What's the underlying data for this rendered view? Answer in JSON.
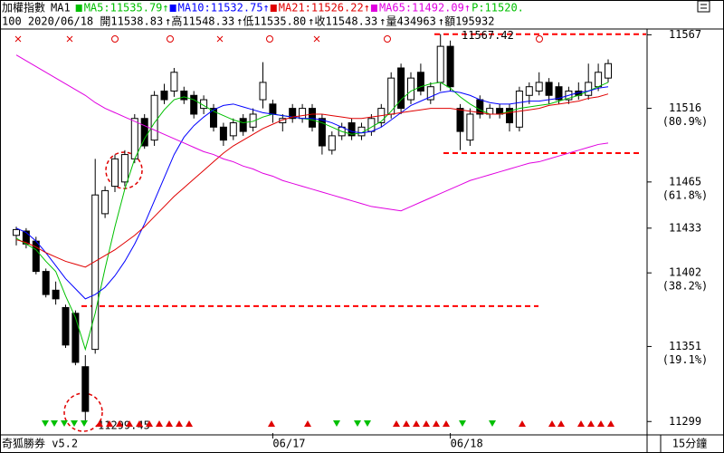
{
  "chart_data": {
    "type": "candlestick",
    "title": "加權指數",
    "subtitle": "MA1",
    "price_label": "P:11520.",
    "info": [
      "100 2020/06/18 開11538.83",
      "↑高11548.33",
      "↑低11535.80",
      "↑收11548.33",
      "↑量434963",
      "↑額195932"
    ],
    "brand": "奇狐勝券 v5.2",
    "interval": "15分鐘",
    "categories": [
      null,
      null,
      null,
      null,
      null,
      null,
      null,
      null,
      null,
      null,
      null,
      null,
      null,
      null,
      null,
      null,
      null,
      null,
      null,
      null,
      null,
      null,
      null,
      null,
      null,
      null,
      "06/17",
      null,
      null,
      null,
      null,
      null,
      null,
      null,
      null,
      null,
      null,
      null,
      null,
      null,
      null,
      null,
      null,
      null,
      "06/18",
      null,
      null,
      null,
      null,
      null,
      null,
      null,
      null,
      null,
      null,
      null,
      null,
      null,
      null,
      null,
      null
    ],
    "candles": [
      [
        11428,
        11434,
        11421,
        11432
      ],
      [
        11431,
        11433,
        11419,
        11422
      ],
      [
        11424,
        11427,
        11401,
        11403
      ],
      [
        11403,
        11405,
        11385,
        11387
      ],
      [
        11390,
        11396,
        11380,
        11384
      ],
      [
        11378,
        11380,
        11350,
        11352
      ],
      [
        11374,
        11376,
        11338,
        11340
      ],
      [
        11337,
        11345,
        11299.45,
        11306
      ],
      [
        11349,
        11481,
        11346,
        11456
      ],
      [
        11443,
        11462,
        11440,
        11459
      ],
      [
        11462,
        11484,
        11458,
        11481
      ],
      [
        11465,
        11487,
        11462,
        11484
      ],
      [
        11481,
        11512,
        11478,
        11509
      ],
      [
        11509,
        11512,
        11488,
        11490
      ],
      [
        11494,
        11528,
        11490,
        11525
      ],
      [
        11528,
        11533,
        11519,
        11522
      ],
      [
        11528,
        11544,
        11524,
        11541
      ],
      [
        11528,
        11531,
        11519,
        11522
      ],
      [
        11525,
        11528,
        11509,
        11512
      ],
      [
        11516,
        11525,
        11512,
        11522
      ],
      [
        11516,
        11519,
        11500,
        11503
      ],
      [
        11503,
        11506,
        11490,
        11494
      ],
      [
        11497,
        11509,
        11494,
        11506
      ],
      [
        11509,
        11512,
        11497,
        11500
      ],
      [
        11503,
        11516,
        11500,
        11512
      ],
      [
        11522,
        11548,
        11516,
        11534
      ],
      [
        11519,
        11522,
        11506,
        11512
      ],
      [
        11506,
        11512,
        11500,
        11509
      ],
      [
        11516,
        11519,
        11506,
        11509
      ],
      [
        11509,
        11519,
        11506,
        11516
      ],
      [
        11516,
        11519,
        11500,
        11503
      ],
      [
        11509,
        11512,
        11484,
        11490
      ],
      [
        11487,
        11500,
        11484,
        11497
      ],
      [
        11497,
        11506,
        11494,
        11503
      ],
      [
        11506,
        11509,
        11494,
        11497
      ],
      [
        11497,
        11506,
        11494,
        11503
      ],
      [
        11500,
        11512,
        11497,
        11509
      ],
      [
        11506,
        11519,
        11503,
        11516
      ],
      [
        11512,
        11541,
        11509,
        11537
      ],
      [
        11544,
        11547,
        11512,
        11516
      ],
      [
        11522,
        11541,
        11519,
        11537
      ],
      [
        11541,
        11547,
        11525,
        11528
      ],
      [
        11522,
        11534,
        11519,
        11531
      ],
      [
        11534,
        11567.42,
        11528,
        11559
      ],
      [
        11559,
        11563,
        11528,
        11531
      ],
      [
        11516,
        11519,
        11487,
        11500
      ],
      [
        11494,
        11516,
        11490,
        11512
      ],
      [
        11522,
        11525,
        11509,
        11512
      ],
      [
        11512,
        11519,
        11509,
        11516
      ],
      [
        11516,
        11519,
        11509,
        11512
      ],
      [
        11516,
        11519,
        11500,
        11506
      ],
      [
        11503,
        11531,
        11500,
        11528
      ],
      [
        11525,
        11534,
        11519,
        11531
      ],
      [
        11528,
        11541,
        11525,
        11534
      ],
      [
        11534,
        11537,
        11519,
        11525
      ],
      [
        11531,
        11534,
        11519,
        11522
      ],
      [
        11522,
        11531,
        11519,
        11528
      ],
      [
        11528,
        11534,
        11522,
        11525
      ],
      [
        11525,
        11547,
        11522,
        11534
      ],
      [
        11531,
        11547,
        11528,
        11541
      ],
      [
        11537,
        11550,
        11534,
        11547
      ]
    ],
    "series": [
      {
        "name": "MA5:11535.79↑",
        "color": "#00c000",
        "values": [
          11426,
          11422,
          11418,
          11410,
          11403,
          11386,
          11371,
          11349,
          11374,
          11405,
          11434,
          11460,
          11481,
          11495,
          11506,
          11515,
          11522,
          11524,
          11522,
          11518,
          11514,
          11511,
          11508,
          11506,
          11507,
          11510,
          11512,
          11511,
          11510,
          11509,
          11508,
          11506,
          11503,
          11500,
          11498,
          11499,
          11503,
          11507,
          11514,
          11522,
          11528,
          11531,
          11533,
          11534,
          11530,
          11524,
          11519,
          11515,
          11512,
          11512,
          11514,
          11516,
          11517,
          11518,
          11519,
          11521,
          11523,
          11525,
          11528,
          11531,
          11534
        ]
      },
      {
        "name": "MA10:11532.75↑",
        "color": "#0000ff",
        "values": [
          11433,
          11430,
          11424,
          11416,
          11407,
          11398,
          11391,
          11384,
          11387,
          11392,
          11400,
          11410,
          11422,
          11436,
          11452,
          11468,
          11484,
          11496,
          11504,
          11510,
          11515,
          11518,
          11519,
          11517,
          11515,
          11513,
          11512,
          11511,
          11510,
          11509,
          11509,
          11508,
          11506,
          11503,
          11500,
          11499,
          11500,
          11503,
          11508,
          11513,
          11518,
          11521,
          11524,
          11527,
          11528,
          11527,
          11525,
          11522,
          11520,
          11519,
          11519,
          11520,
          11521,
          11521,
          11522,
          11523,
          11525,
          11527,
          11528,
          11530,
          11531
        ]
      },
      {
        "name": "MA21:11526.22↑",
        "color": "#e00000",
        "values": [
          11425,
          11423,
          11420,
          11416,
          11413,
          11410,
          11408,
          11406,
          11410,
          11414,
          11418,
          11423,
          11428,
          11434,
          11441,
          11448,
          11455,
          11461,
          11467,
          11473,
          11479,
          11485,
          11490,
          11494,
          11498,
          11502,
          11505,
          11508,
          11510,
          11511,
          11512,
          11512,
          11511,
          11510,
          11509,
          11509,
          11510,
          11511,
          11512,
          11513,
          11514,
          11515,
          11516,
          11516,
          11516,
          11515,
          11514,
          11513,
          11512,
          11512,
          11513,
          11514,
          11515,
          11516,
          11518,
          11519,
          11520,
          11521,
          11523,
          11524,
          11526
        ]
      },
      {
        "name": "MA65:11492.09↑",
        "color": "#e000e0",
        "values": [
          11553,
          11549,
          11545,
          11541,
          11537,
          11533,
          11529,
          11525,
          11520,
          11516,
          11513,
          11510,
          11507,
          11504,
          11501,
          11498,
          11495,
          11492,
          11489,
          11486,
          11484,
          11481,
          11479,
          11476,
          11474,
          11471,
          11469,
          11466,
          11464,
          11462,
          11460,
          11458,
          11456,
          11454,
          11452,
          11450,
          11448,
          11447,
          11446,
          11445,
          11448,
          11451,
          11454,
          11457,
          11460,
          11463,
          11466,
          11468,
          11470,
          11472,
          11474,
          11476,
          11478,
          11479,
          11481,
          11483,
          11485,
          11487,
          11489,
          11491,
          11492
        ]
      }
    ],
    "levels": [
      11485,
      11379
    ],
    "ylim": [
      11291,
      11571
    ],
    "yticks": [
      11299,
      11351,
      11402,
      11433,
      11465,
      11516,
      11567
    ],
    "fib_labels": [
      {
        "value": 11351,
        "label": "(19.1%)"
      },
      {
        "value": 11402,
        "label": "(38.2%)"
      },
      {
        "value": 11465,
        "label": "(61.8%)"
      },
      {
        "value": 11516,
        "label": "(80.9%)"
      }
    ],
    "level_color": "#ff0000",
    "up_color": "#ffffff",
    "down_color": "#000000"
  }
}
